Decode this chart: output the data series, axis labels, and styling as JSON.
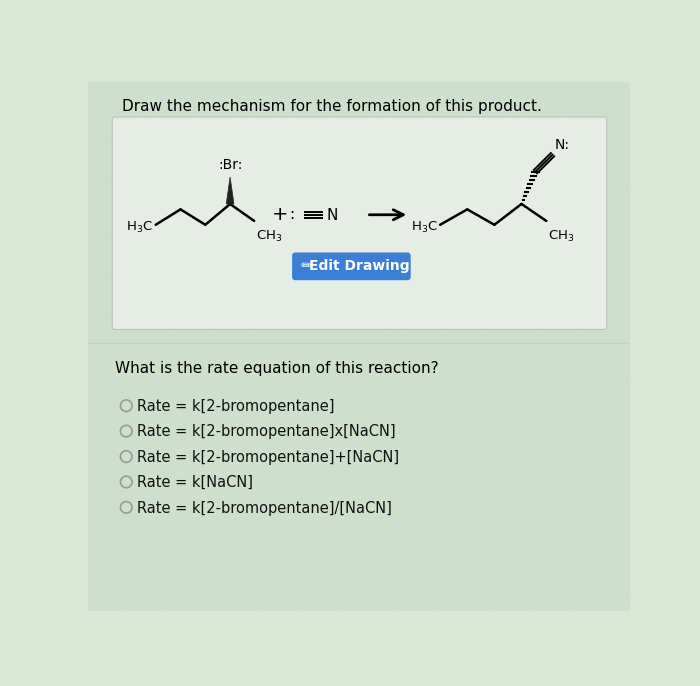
{
  "title": "Draw the mechanism for the formation of this product.",
  "title_fontsize": 11,
  "bg_stripe_color": "#c8dfc8",
  "bg_base_color": "#d8e8d4",
  "top_box_color": "#eaf0ea",
  "bottom_area_color": "#d8e4ec",
  "edit_button_color": "#3a7fd5",
  "edit_button_text": "Edit Drawing",
  "question_text": "What is the rate equation of this reaction?",
  "options": [
    "Rate = k[2-bromopentane]",
    "Rate = k[2-bromopentane]x[NaCN]",
    "Rate = k[2-bromopentane]+[NaCN]",
    "Rate = k[NaCN]",
    "Rate = k[2-bromopentane]/[NaCN]"
  ],
  "option_fontsize": 10.5,
  "question_fontsize": 11
}
